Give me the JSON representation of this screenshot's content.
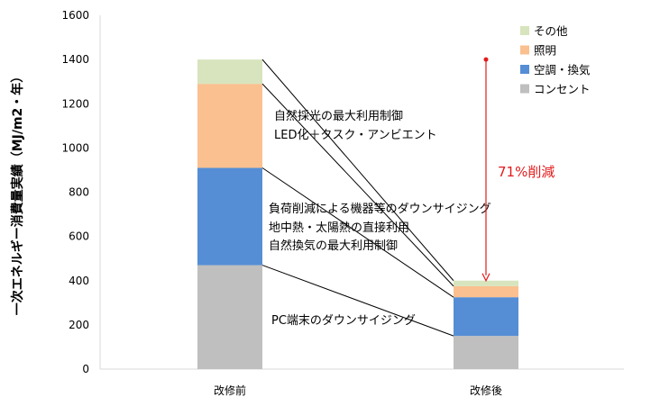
{
  "chart_data": {
    "type": "bar",
    "stacked": true,
    "categories": [
      "改修前",
      "改修後"
    ],
    "ylabel": "一次エネルギー消費量実績（MJ/m2・年）",
    "ylim": [
      0,
      1600
    ],
    "yticks": [
      0,
      200,
      400,
      600,
      800,
      1000,
      1200,
      1400,
      1600
    ],
    "grid": false,
    "legend_position": "top-right",
    "series": [
      {
        "name": "コンセント",
        "values": [
          470,
          150
        ],
        "color": "#bfbfbf"
      },
      {
        "name": "空調・換気",
        "values": [
          440,
          175
        ],
        "color": "#558ed5"
      },
      {
        "name": "照明",
        "values": [
          380,
          50
        ],
        "color": "#fac090"
      },
      {
        "name": "その他",
        "values": [
          110,
          25
        ],
        "color": "#d7e4bd"
      }
    ],
    "legend_order": [
      "その他",
      "照明",
      "空調・換気",
      "コンセント"
    ],
    "annotations": {
      "lighting_lines": [
        "自然採光の最大利用制御",
        "LED化＋タスク・アンビエント"
      ],
      "hvac_lines": [
        "負荷削減による機器等のダウンサイジング",
        "地中熱・太陽熱の直接利用",
        "自然換気の最大利用制御"
      ],
      "outlet_line": "PC端末のダウンサイジング",
      "reduction": {
        "label": "71%削減",
        "from_value": 1400,
        "to_value": 400,
        "color": "#e31a1c"
      }
    }
  }
}
